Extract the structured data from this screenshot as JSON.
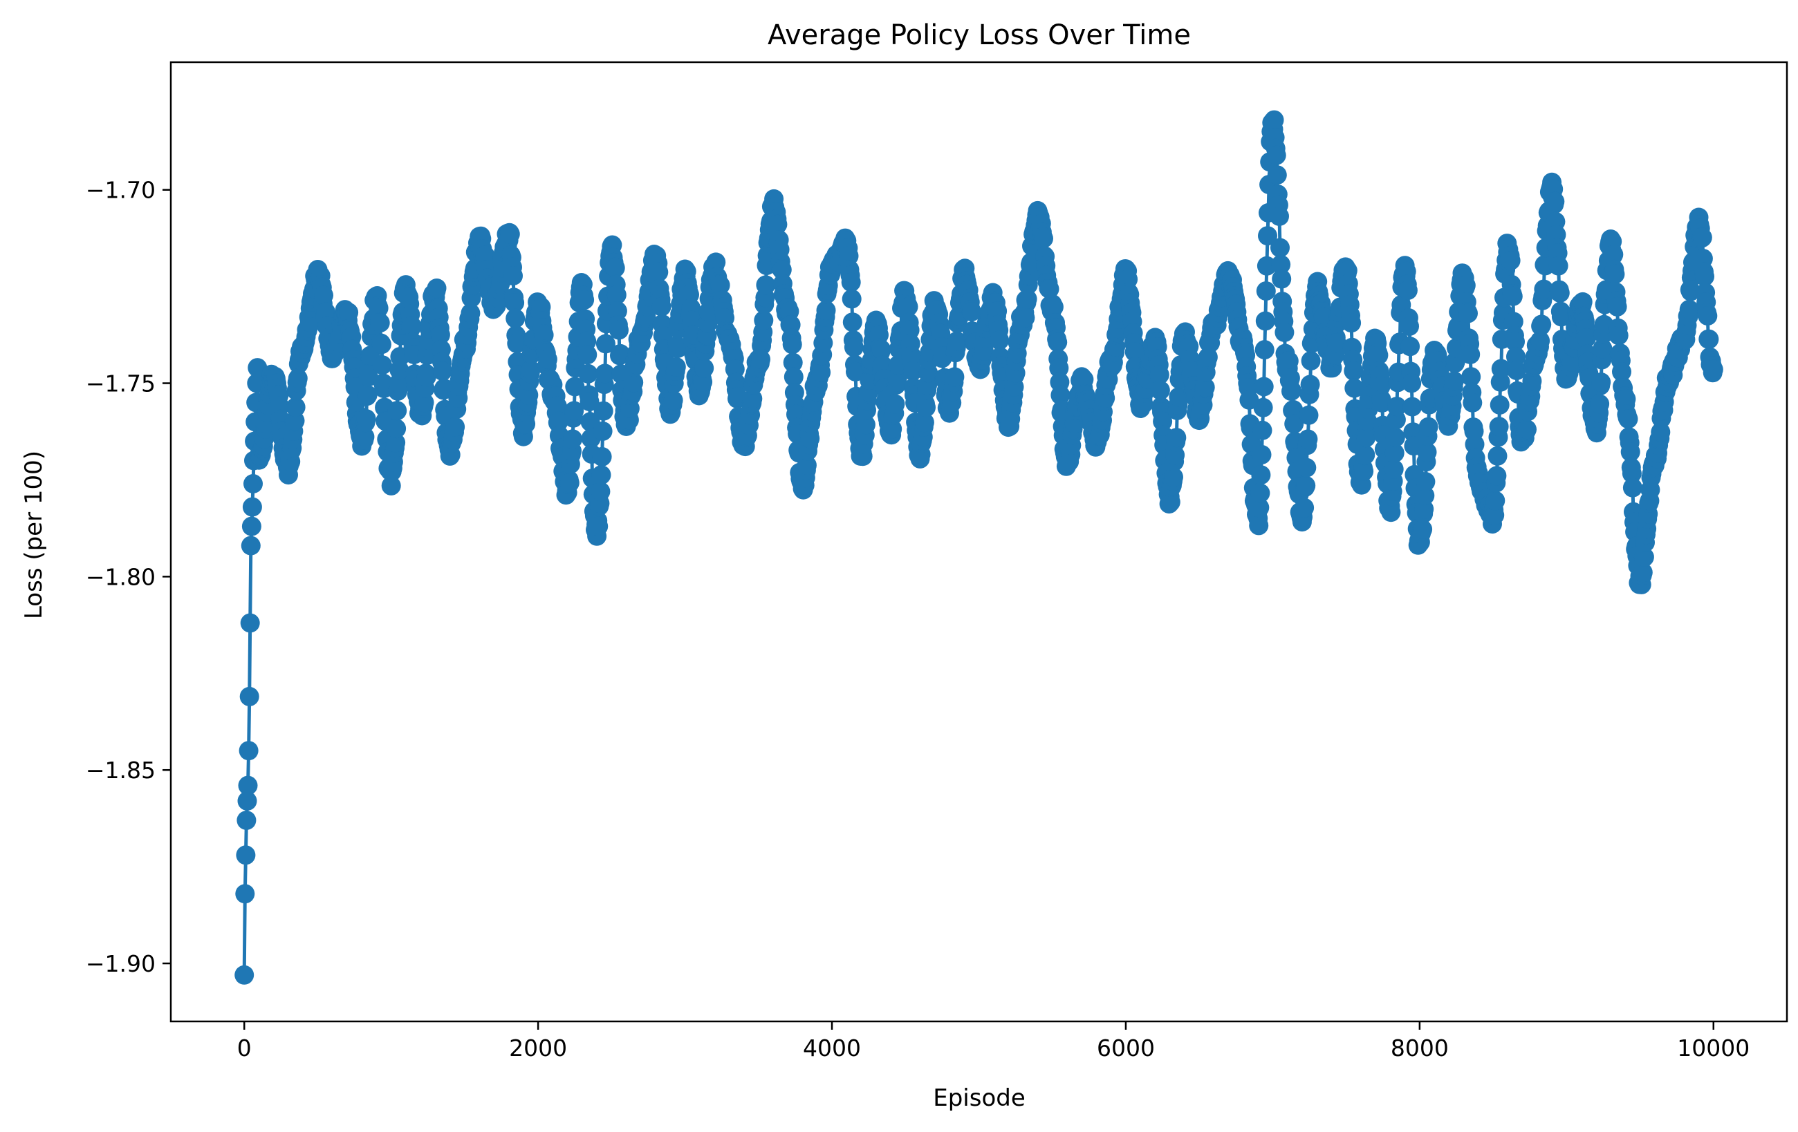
{
  "chart_data": {
    "type": "line",
    "title": "Average Policy Loss Over Time",
    "xlabel": "Episode",
    "ylabel": "Loss (per 100)",
    "xlim": [
      -500,
      10500
    ],
    "ylim": [
      -1.915,
      -1.667
    ],
    "xticks": [
      0,
      2000,
      4000,
      6000,
      8000,
      10000
    ],
    "xtick_labels": [
      "0",
      "2000",
      "4000",
      "6000",
      "8000",
      "10000"
    ],
    "yticks": [
      -1.9,
      -1.85,
      -1.8,
      -1.75,
      -1.7
    ],
    "ytick_labels": [
      "−1.90",
      "−1.85",
      "−1.80",
      "−1.75",
      "−1.70"
    ],
    "grid": false,
    "legend": "none",
    "marker": "circle",
    "series": [
      {
        "color": "#1f77b4",
        "initial_points": [
          [
            0,
            -1.903
          ],
          [
            5,
            -1.882
          ],
          [
            10,
            -1.872
          ],
          [
            15,
            -1.863
          ],
          [
            20,
            -1.858
          ],
          [
            25,
            -1.854
          ],
          [
            30,
            -1.845
          ],
          [
            35,
            -1.831
          ],
          [
            40,
            -1.812
          ],
          [
            45,
            -1.792
          ],
          [
            50,
            -1.787
          ],
          [
            55,
            -1.782
          ],
          [
            60,
            -1.776
          ],
          [
            65,
            -1.77
          ],
          [
            70,
            -1.765
          ],
          [
            75,
            -1.76
          ],
          [
            80,
            -1.755
          ],
          [
            85,
            -1.75
          ],
          [
            90,
            -1.746
          ]
        ],
        "anchors": [
          [
            100,
            -1.77
          ],
          [
            200,
            -1.748
          ],
          [
            300,
            -1.772
          ],
          [
            400,
            -1.74
          ],
          [
            500,
            -1.722
          ],
          [
            600,
            -1.742
          ],
          [
            700,
            -1.732
          ],
          [
            800,
            -1.766
          ],
          [
            900,
            -1.728
          ],
          [
            1000,
            -1.775
          ],
          [
            1100,
            -1.725
          ],
          [
            1200,
            -1.758
          ],
          [
            1300,
            -1.726
          ],
          [
            1400,
            -1.768
          ],
          [
            1500,
            -1.74
          ],
          [
            1600,
            -1.713
          ],
          [
            1700,
            -1.73
          ],
          [
            1800,
            -1.712
          ],
          [
            1900,
            -1.762
          ],
          [
            2000,
            -1.73
          ],
          [
            2100,
            -1.752
          ],
          [
            2200,
            -1.778
          ],
          [
            2300,
            -1.725
          ],
          [
            2400,
            -1.788
          ],
          [
            2500,
            -1.715
          ],
          [
            2600,
            -1.76
          ],
          [
            2700,
            -1.738
          ],
          [
            2800,
            -1.718
          ],
          [
            2900,
            -1.756
          ],
          [
            3000,
            -1.722
          ],
          [
            3100,
            -1.752
          ],
          [
            3200,
            -1.72
          ],
          [
            3300,
            -1.738
          ],
          [
            3400,
            -1.765
          ],
          [
            3500,
            -1.745
          ],
          [
            3600,
            -1.704
          ],
          [
            3700,
            -1.732
          ],
          [
            3800,
            -1.776
          ],
          [
            3900,
            -1.75
          ],
          [
            4000,
            -1.72
          ],
          [
            4100,
            -1.714
          ],
          [
            4200,
            -1.768
          ],
          [
            4300,
            -1.735
          ],
          [
            4400,
            -1.762
          ],
          [
            4500,
            -1.727
          ],
          [
            4600,
            -1.768
          ],
          [
            4700,
            -1.73
          ],
          [
            4800,
            -1.756
          ],
          [
            4900,
            -1.722
          ],
          [
            5000,
            -1.745
          ],
          [
            5100,
            -1.728
          ],
          [
            5200,
            -1.76
          ],
          [
            5300,
            -1.733
          ],
          [
            5400,
            -1.706
          ],
          [
            5500,
            -1.73
          ],
          [
            5600,
            -1.77
          ],
          [
            5700,
            -1.75
          ],
          [
            5800,
            -1.765
          ],
          [
            5900,
            -1.745
          ],
          [
            6000,
            -1.722
          ],
          [
            6100,
            -1.755
          ],
          [
            6200,
            -1.74
          ],
          [
            6300,
            -1.78
          ],
          [
            6400,
            -1.738
          ],
          [
            6500,
            -1.758
          ],
          [
            6600,
            -1.735
          ],
          [
            6700,
            -1.722
          ],
          [
            6800,
            -1.74
          ],
          [
            6900,
            -1.786
          ],
          [
            7000,
            -1.682
          ],
          [
            7100,
            -1.745
          ],
          [
            7200,
            -1.784
          ],
          [
            7300,
            -1.725
          ],
          [
            7400,
            -1.745
          ],
          [
            7500,
            -1.72
          ],
          [
            7600,
            -1.775
          ],
          [
            7700,
            -1.738
          ],
          [
            7800,
            -1.782
          ],
          [
            7900,
            -1.72
          ],
          [
            8000,
            -1.792
          ],
          [
            8100,
            -1.742
          ],
          [
            8200,
            -1.76
          ],
          [
            8300,
            -1.722
          ],
          [
            8400,
            -1.775
          ],
          [
            8500,
            -1.785
          ],
          [
            8600,
            -1.715
          ],
          [
            8700,
            -1.765
          ],
          [
            8800,
            -1.742
          ],
          [
            8900,
            -1.7
          ],
          [
            9000,
            -1.748
          ],
          [
            9100,
            -1.73
          ],
          [
            9200,
            -1.762
          ],
          [
            9300,
            -1.714
          ],
          [
            9400,
            -1.755
          ],
          [
            9500,
            -1.801
          ],
          [
            9600,
            -1.77
          ],
          [
            9700,
            -1.748
          ],
          [
            9800,
            -1.738
          ],
          [
            9900,
            -1.708
          ],
          [
            10000,
            -1.748
          ]
        ]
      }
    ]
  }
}
